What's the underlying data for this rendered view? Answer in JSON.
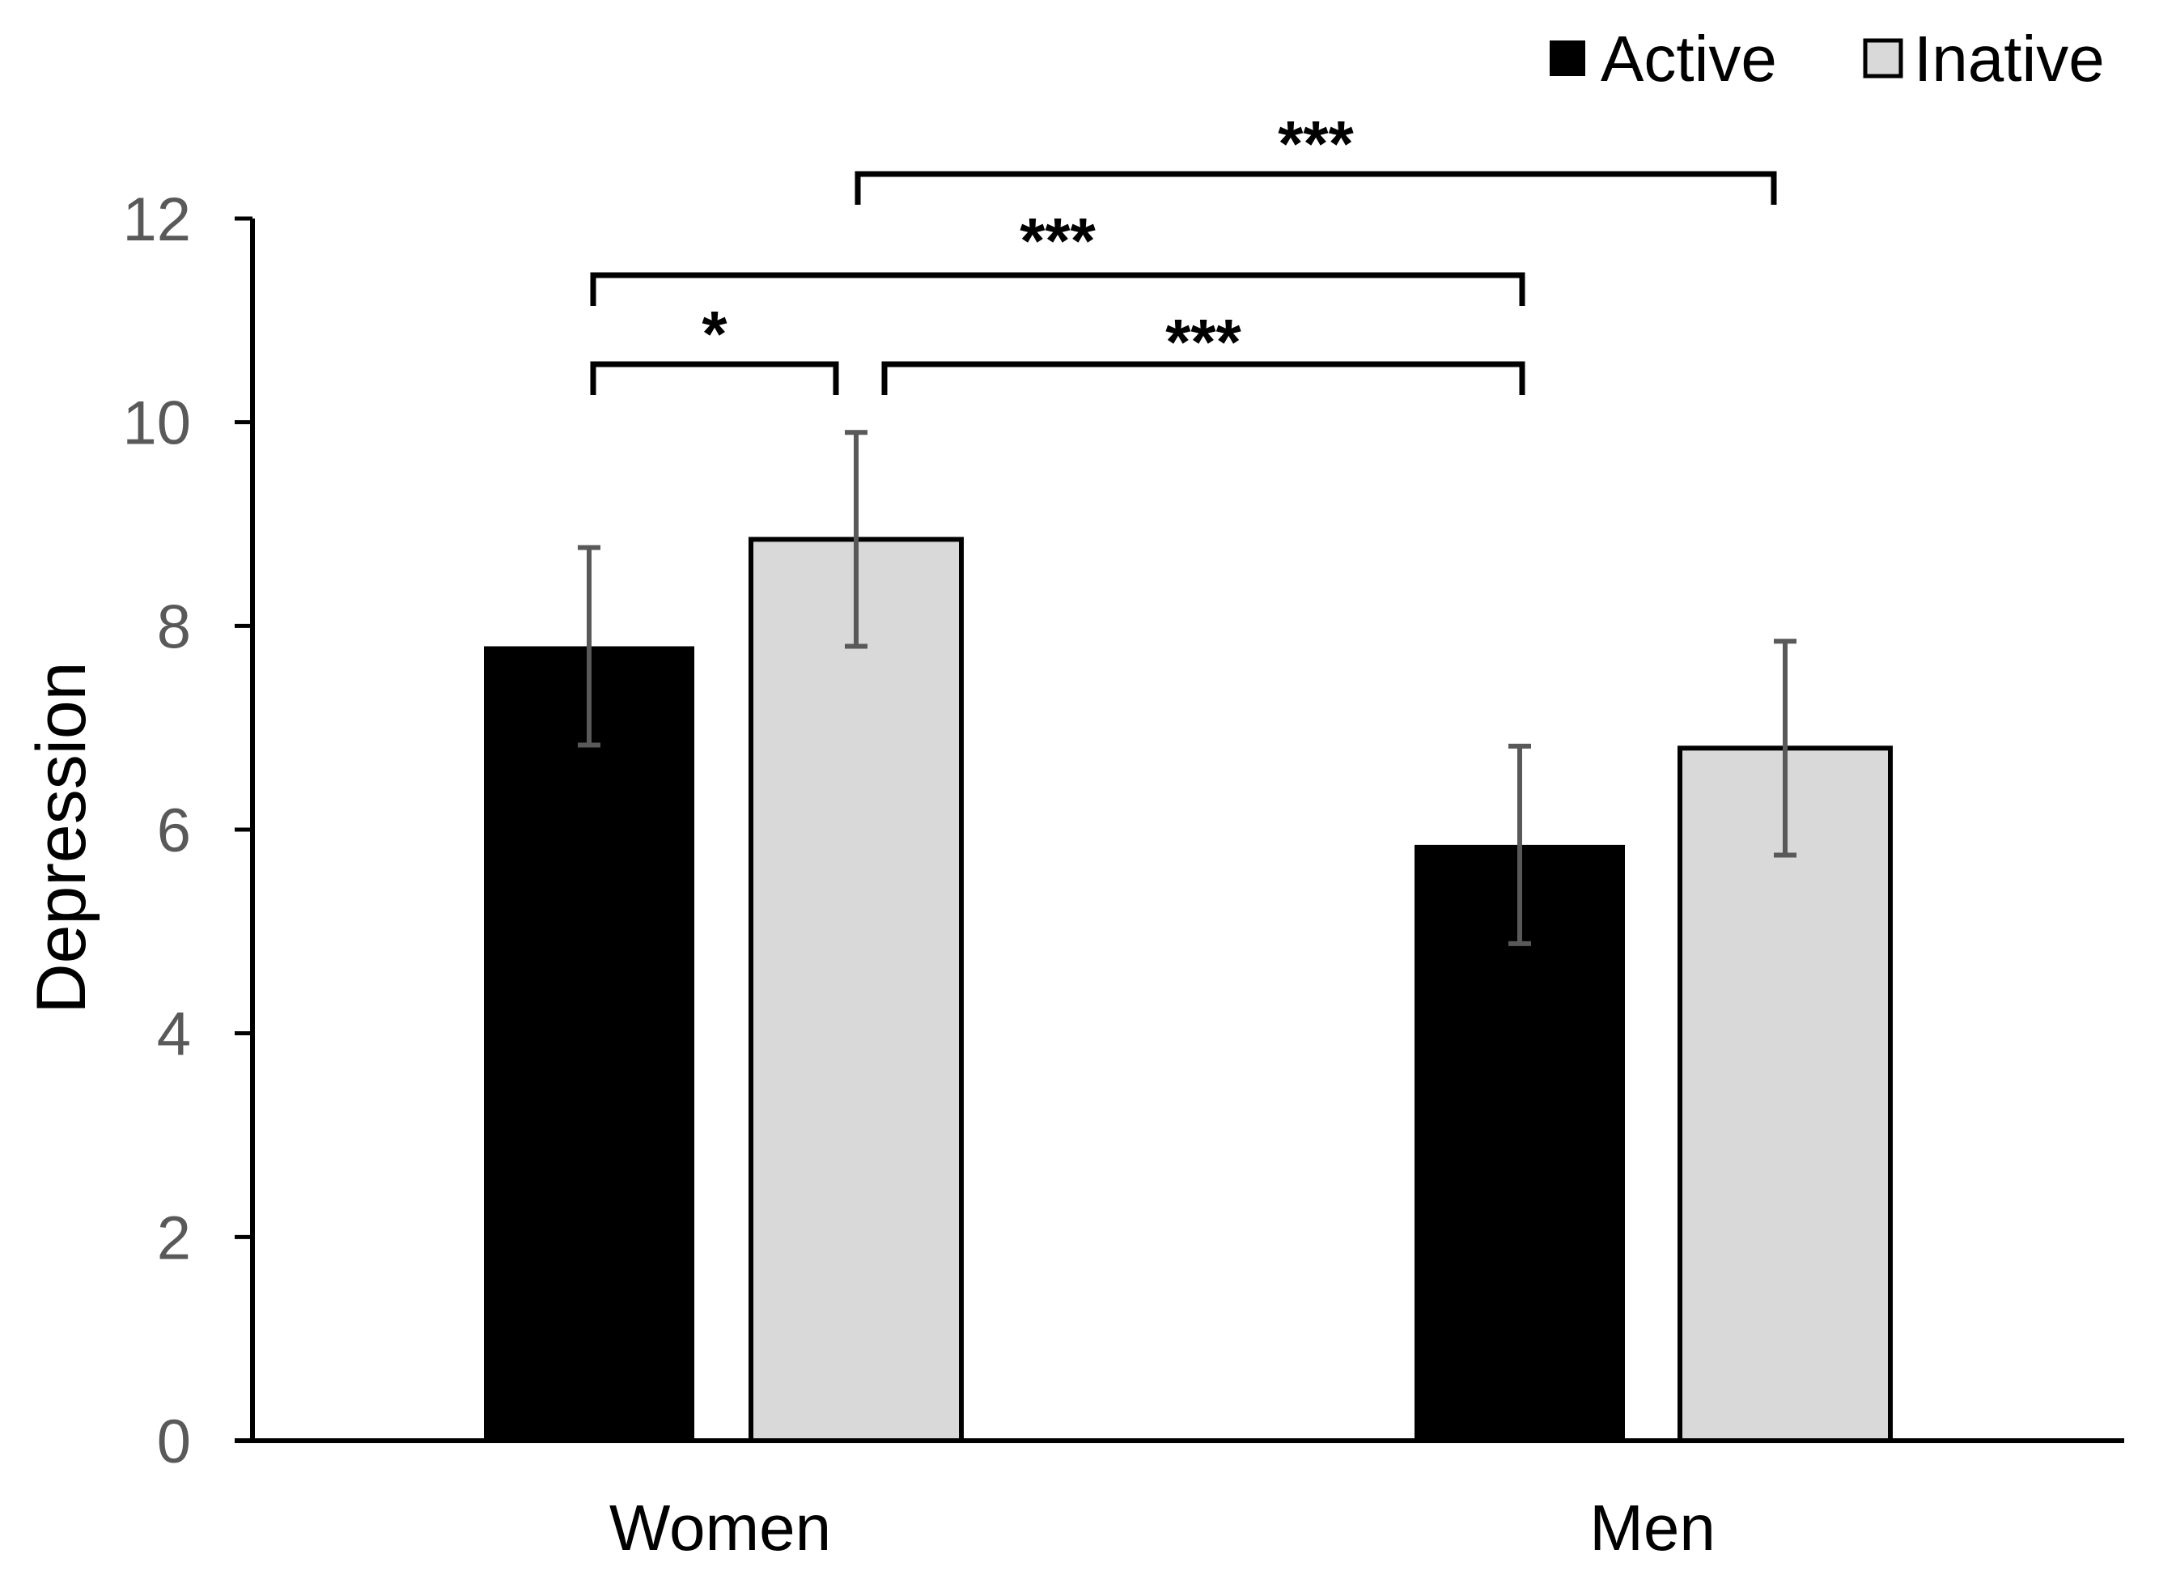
{
  "chart_data": {
    "type": "bar",
    "title": "",
    "xlabel": "",
    "ylabel": "Depression",
    "ylim": [
      0,
      12
    ],
    "yticks": [
      "0",
      "2",
      "4",
      "6",
      "8",
      "10",
      "12"
    ],
    "categories": [
      "Women",
      "Men"
    ],
    "legend_position": "top-right",
    "series": [
      {
        "name": "Active",
        "color": "#000000",
        "values": [
          7.8,
          5.85
        ],
        "errors": [
          0.97,
          0.97
        ]
      },
      {
        "name": "Inative",
        "color": "#d9d9d9",
        "values": [
          8.85,
          6.8
        ],
        "errors": [
          1.05,
          1.05
        ]
      }
    ],
    "significance": [
      {
        "label": "***",
        "from": "Women Inative",
        "to": "Men Inative"
      },
      {
        "label": "***",
        "from": "Women Active",
        "to": "Men Active"
      },
      {
        "label": "*",
        "from": "Women Active",
        "to": "Women Inative"
      },
      {
        "label": "***",
        "from": "Women Inative",
        "to": "Men Active"
      }
    ]
  }
}
